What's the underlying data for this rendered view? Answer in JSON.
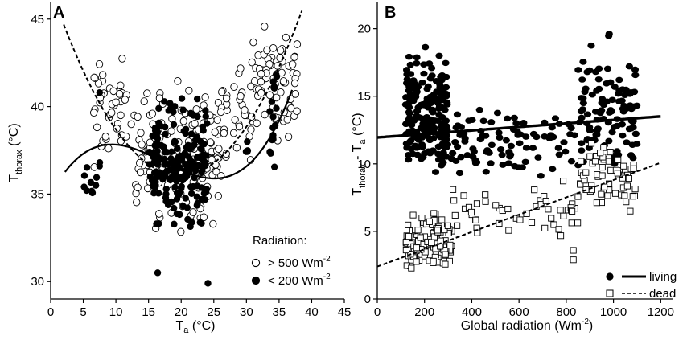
{
  "chart_data": [
    {
      "type": "scatter",
      "panel_label": "A",
      "xlabel": "T",
      "xlabel_sub": "a",
      "xlabel_unit": " (°C)",
      "ylabel": "T",
      "ylabel_sub": "thorax",
      "ylabel_unit": " (°C)",
      "xlim": [
        0,
        45
      ],
      "ylim": [
        29,
        46
      ],
      "xticks": [
        0,
        5,
        10,
        15,
        20,
        25,
        30,
        35,
        40,
        45
      ],
      "yticks": [
        30,
        35,
        40,
        45
      ],
      "legend_title": "Radiation:",
      "legend_position": "bottom-right",
      "series": [
        {
          "name": "> 500 Wm",
          "name_sup": "-2",
          "marker": "open-circle",
          "clusters": [
            {
              "x_range": [
                6,
                13
              ],
              "y_range": [
                35.5,
                43.8
              ],
              "count": 45
            },
            {
              "x_range": [
                13,
                26
              ],
              "y_range": [
                32,
                42.5
              ],
              "count": 160
            },
            {
              "x_range": [
                26,
                31
              ],
              "y_range": [
                34.5,
                44.3
              ],
              "count": 35
            },
            {
              "x_range": [
                31,
                38
              ],
              "y_range": [
                37.5,
                45.5
              ],
              "count": 70
            }
          ]
        },
        {
          "name": "< 200 Wm",
          "name_sup": "-2",
          "marker": "filled-circle",
          "clusters": [
            {
              "x_range": [
                5,
                8
              ],
              "y_range": [
                34.2,
                38
              ],
              "count": 12
            },
            {
              "x_range": [
                15,
                24
              ],
              "y_range": [
                32,
                41.5
              ],
              "count": 190
            },
            {
              "x_range": [
                29,
                30.5
              ],
              "y_range": [
                36,
                38.5
              ],
              "count": 4
            },
            {
              "x_range": [
                33.5,
                35
              ],
              "y_range": [
                35.5,
                43
              ],
              "count": 18
            }
          ],
          "points": [
            {
              "x": 16.4,
              "y": 30.5
            },
            {
              "x": 24.1,
              "y": 29.9
            },
            {
              "x": 7.5,
              "y": 40.8
            }
          ]
        }
      ],
      "fits": [
        {
          "for": "> 500 Wm-2",
          "style": "dashed",
          "poly": [
            46.73,
            -1.0745,
            0.02706
          ],
          "x_range": [
            2,
            38.5
          ]
        },
        {
          "for": "< 200 Wm-2",
          "style": "solid",
          "poly": [
            34.956,
            0.70317,
            -0.05164,
            0.0010004
          ],
          "x_range": [
            2.2,
            37
          ]
        }
      ]
    },
    {
      "type": "scatter",
      "panel_label": "B",
      "xlabel": "Global radiation (Wm",
      "xlabel_sup": "-2",
      "xlabel_end": ")",
      "ylabel": "T",
      "ylabel_sub": "thorax",
      "ylabel_mid": " - T",
      "ylabel_sub2": "a",
      "ylabel_unit": " (°C)",
      "xlim": [
        0,
        1250
      ],
      "ylim": [
        0,
        22
      ],
      "xticks": [
        0,
        200,
        400,
        600,
        800,
        1000,
        1200
      ],
      "yticks": [
        0,
        5,
        10,
        15,
        20
      ],
      "legend_position": "bottom-right",
      "series": [
        {
          "name": "living",
          "marker": "filled-circle",
          "line": "solid",
          "clusters": [
            {
              "x_range": [
                120,
                300
              ],
              "y_range": [
                7,
                19.5
              ],
              "count": 200
            },
            {
              "x_range": [
                300,
                850
              ],
              "y_range": [
                8,
                15
              ],
              "count": 90
            },
            {
              "x_range": [
                850,
                1100
              ],
              "y_range": [
                7,
                20.5
              ],
              "count": 110
            }
          ]
        },
        {
          "name": "dead",
          "marker": "open-square",
          "line": "dashed",
          "clusters": [
            {
              "x_range": [
                120,
                320
              ],
              "y_range": [
                1.5,
                7
              ],
              "count": 110
            },
            {
              "x_range": [
                320,
                850
              ],
              "y_range": [
                3.5,
                10
              ],
              "count": 50
            },
            {
              "x_range": [
                850,
                1100
              ],
              "y_range": [
                5.5,
                12.5
              ],
              "count": 60
            }
          ],
          "points": [
            {
              "x": 830,
              "y": 2.9
            },
            {
              "x": 830,
              "y": 3.6
            }
          ]
        }
      ],
      "fits": [
        {
          "for": "living",
          "style": "solid",
          "line": [
            11.95,
            0.0013
          ],
          "x_range": [
            0,
            1200
          ]
        },
        {
          "for": "dead",
          "style": "dashed",
          "line": [
            2.4,
            0.0064
          ],
          "x_range": [
            0,
            1200
          ]
        }
      ]
    }
  ]
}
